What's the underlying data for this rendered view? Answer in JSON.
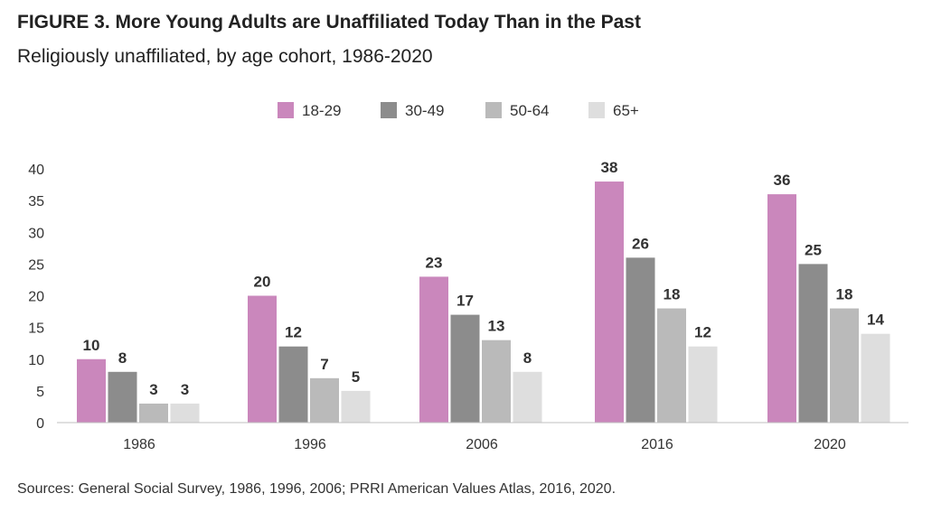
{
  "title": "FIGURE 3. More Young Adults are Unaffiliated Today Than in the Past",
  "subtitle": "Religiously unaffiliated, by age cohort, 1986-2020",
  "source": "Sources: General Social Survey, 1986, 1996, 2006; PRRI American Values Atlas, 2016, 2020.",
  "chart_data": {
    "type": "bar",
    "title": "FIGURE 3. More Young Adults are Unaffiliated Today Than in the Past",
    "subtitle": "Religiously unaffiliated, by age cohort, 1986-2020",
    "xlabel": "",
    "ylabel": "",
    "categories": [
      "1986",
      "1996",
      "2006",
      "2016",
      "2020"
    ],
    "ylim": [
      0,
      40
    ],
    "yticks": [
      0,
      5,
      10,
      15,
      20,
      25,
      30,
      35,
      40
    ],
    "grid": false,
    "legend": "top-center",
    "data_labels": true,
    "series": [
      {
        "name": "18-29",
        "color": "#CA87BC",
        "values": [
          10,
          20,
          23,
          38,
          36
        ]
      },
      {
        "name": "30-49",
        "color": "#8C8C8C",
        "values": [
          8,
          12,
          17,
          26,
          25
        ]
      },
      {
        "name": "50-64",
        "color": "#BABABA",
        "values": [
          3,
          7,
          13,
          18,
          18
        ]
      },
      {
        "name": "65+",
        "color": "#DEDEDE",
        "values": [
          3,
          5,
          8,
          12,
          14
        ]
      }
    ]
  }
}
